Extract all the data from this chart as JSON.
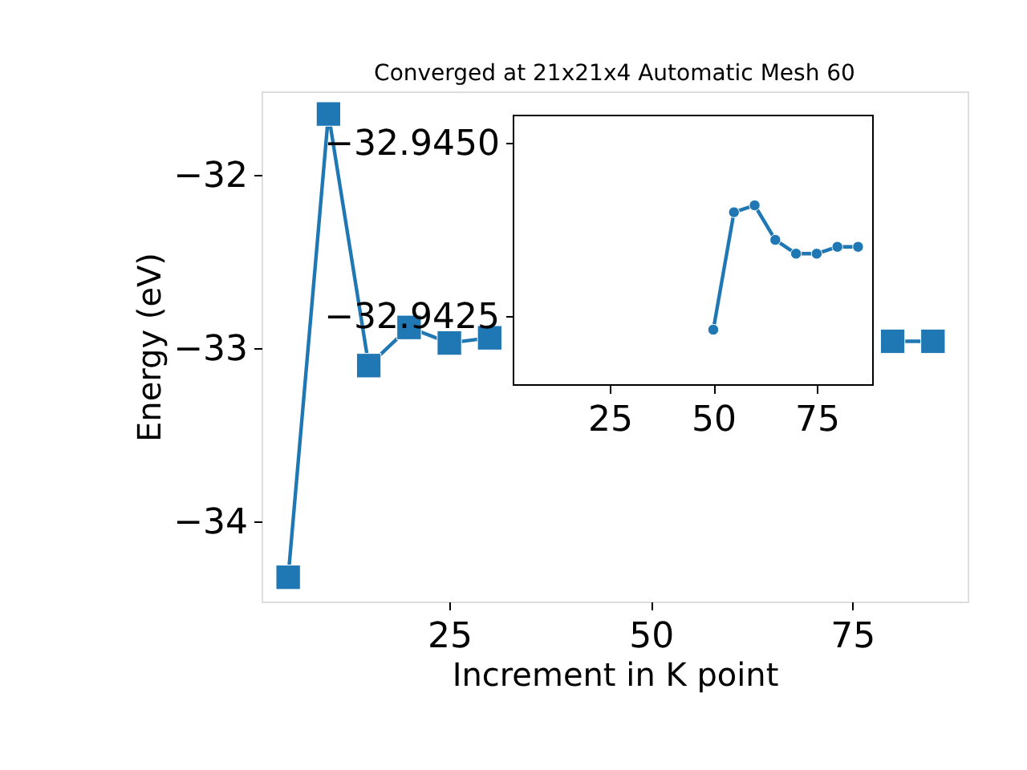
{
  "chart_data": [
    {
      "type": "line",
      "title": "Converged at 21x21x4 Automatic Mesh 60",
      "xlabel": "Increment in K point",
      "ylabel": "Energy (eV)",
      "x": [
        5,
        10,
        15,
        20,
        25,
        30,
        35,
        40,
        45,
        50,
        55,
        60,
        65,
        70,
        75,
        80,
        85
      ],
      "series": [
        {
          "color": "#1f77b4",
          "values": [
            -34.32,
            -31.65,
            -33.1,
            -32.88,
            -32.97,
            -32.94,
            null,
            null,
            null,
            null,
            null,
            null,
            null,
            null,
            null,
            -32.96,
            -32.96
          ]
        }
      ],
      "xlim": [
        1.7,
        89.3
      ],
      "ylim": [
        -34.46,
        -31.52
      ],
      "xticks": [
        25,
        50,
        75
      ],
      "yticks": [
        {
          "value": -34,
          "label": "−34"
        },
        {
          "value": -33,
          "label": "−33"
        },
        {
          "value": -32,
          "label": "−32"
        }
      ],
      "marker": "square",
      "grid": false
    },
    {
      "type": "line",
      "x": [
        50,
        55,
        60,
        65,
        70,
        75,
        80,
        85
      ],
      "series": [
        {
          "color": "#1f77b4",
          "values": [
            -32.9423,
            -32.944,
            -32.9441,
            -32.9436,
            -32.9434,
            -32.9434,
            -32.9435,
            -32.9435
          ]
        }
      ],
      "xlim": [
        1.7,
        88.6
      ],
      "ylim": [
        -32.9415,
        -32.9454
      ],
      "xticks": [
        25,
        50,
        75
      ],
      "yticks": [
        {
          "value": -32.945,
          "label": "−32.9450"
        },
        {
          "value": -32.9425,
          "label": "−32.9425"
        }
      ],
      "marker": "circle",
      "grid": false
    }
  ]
}
